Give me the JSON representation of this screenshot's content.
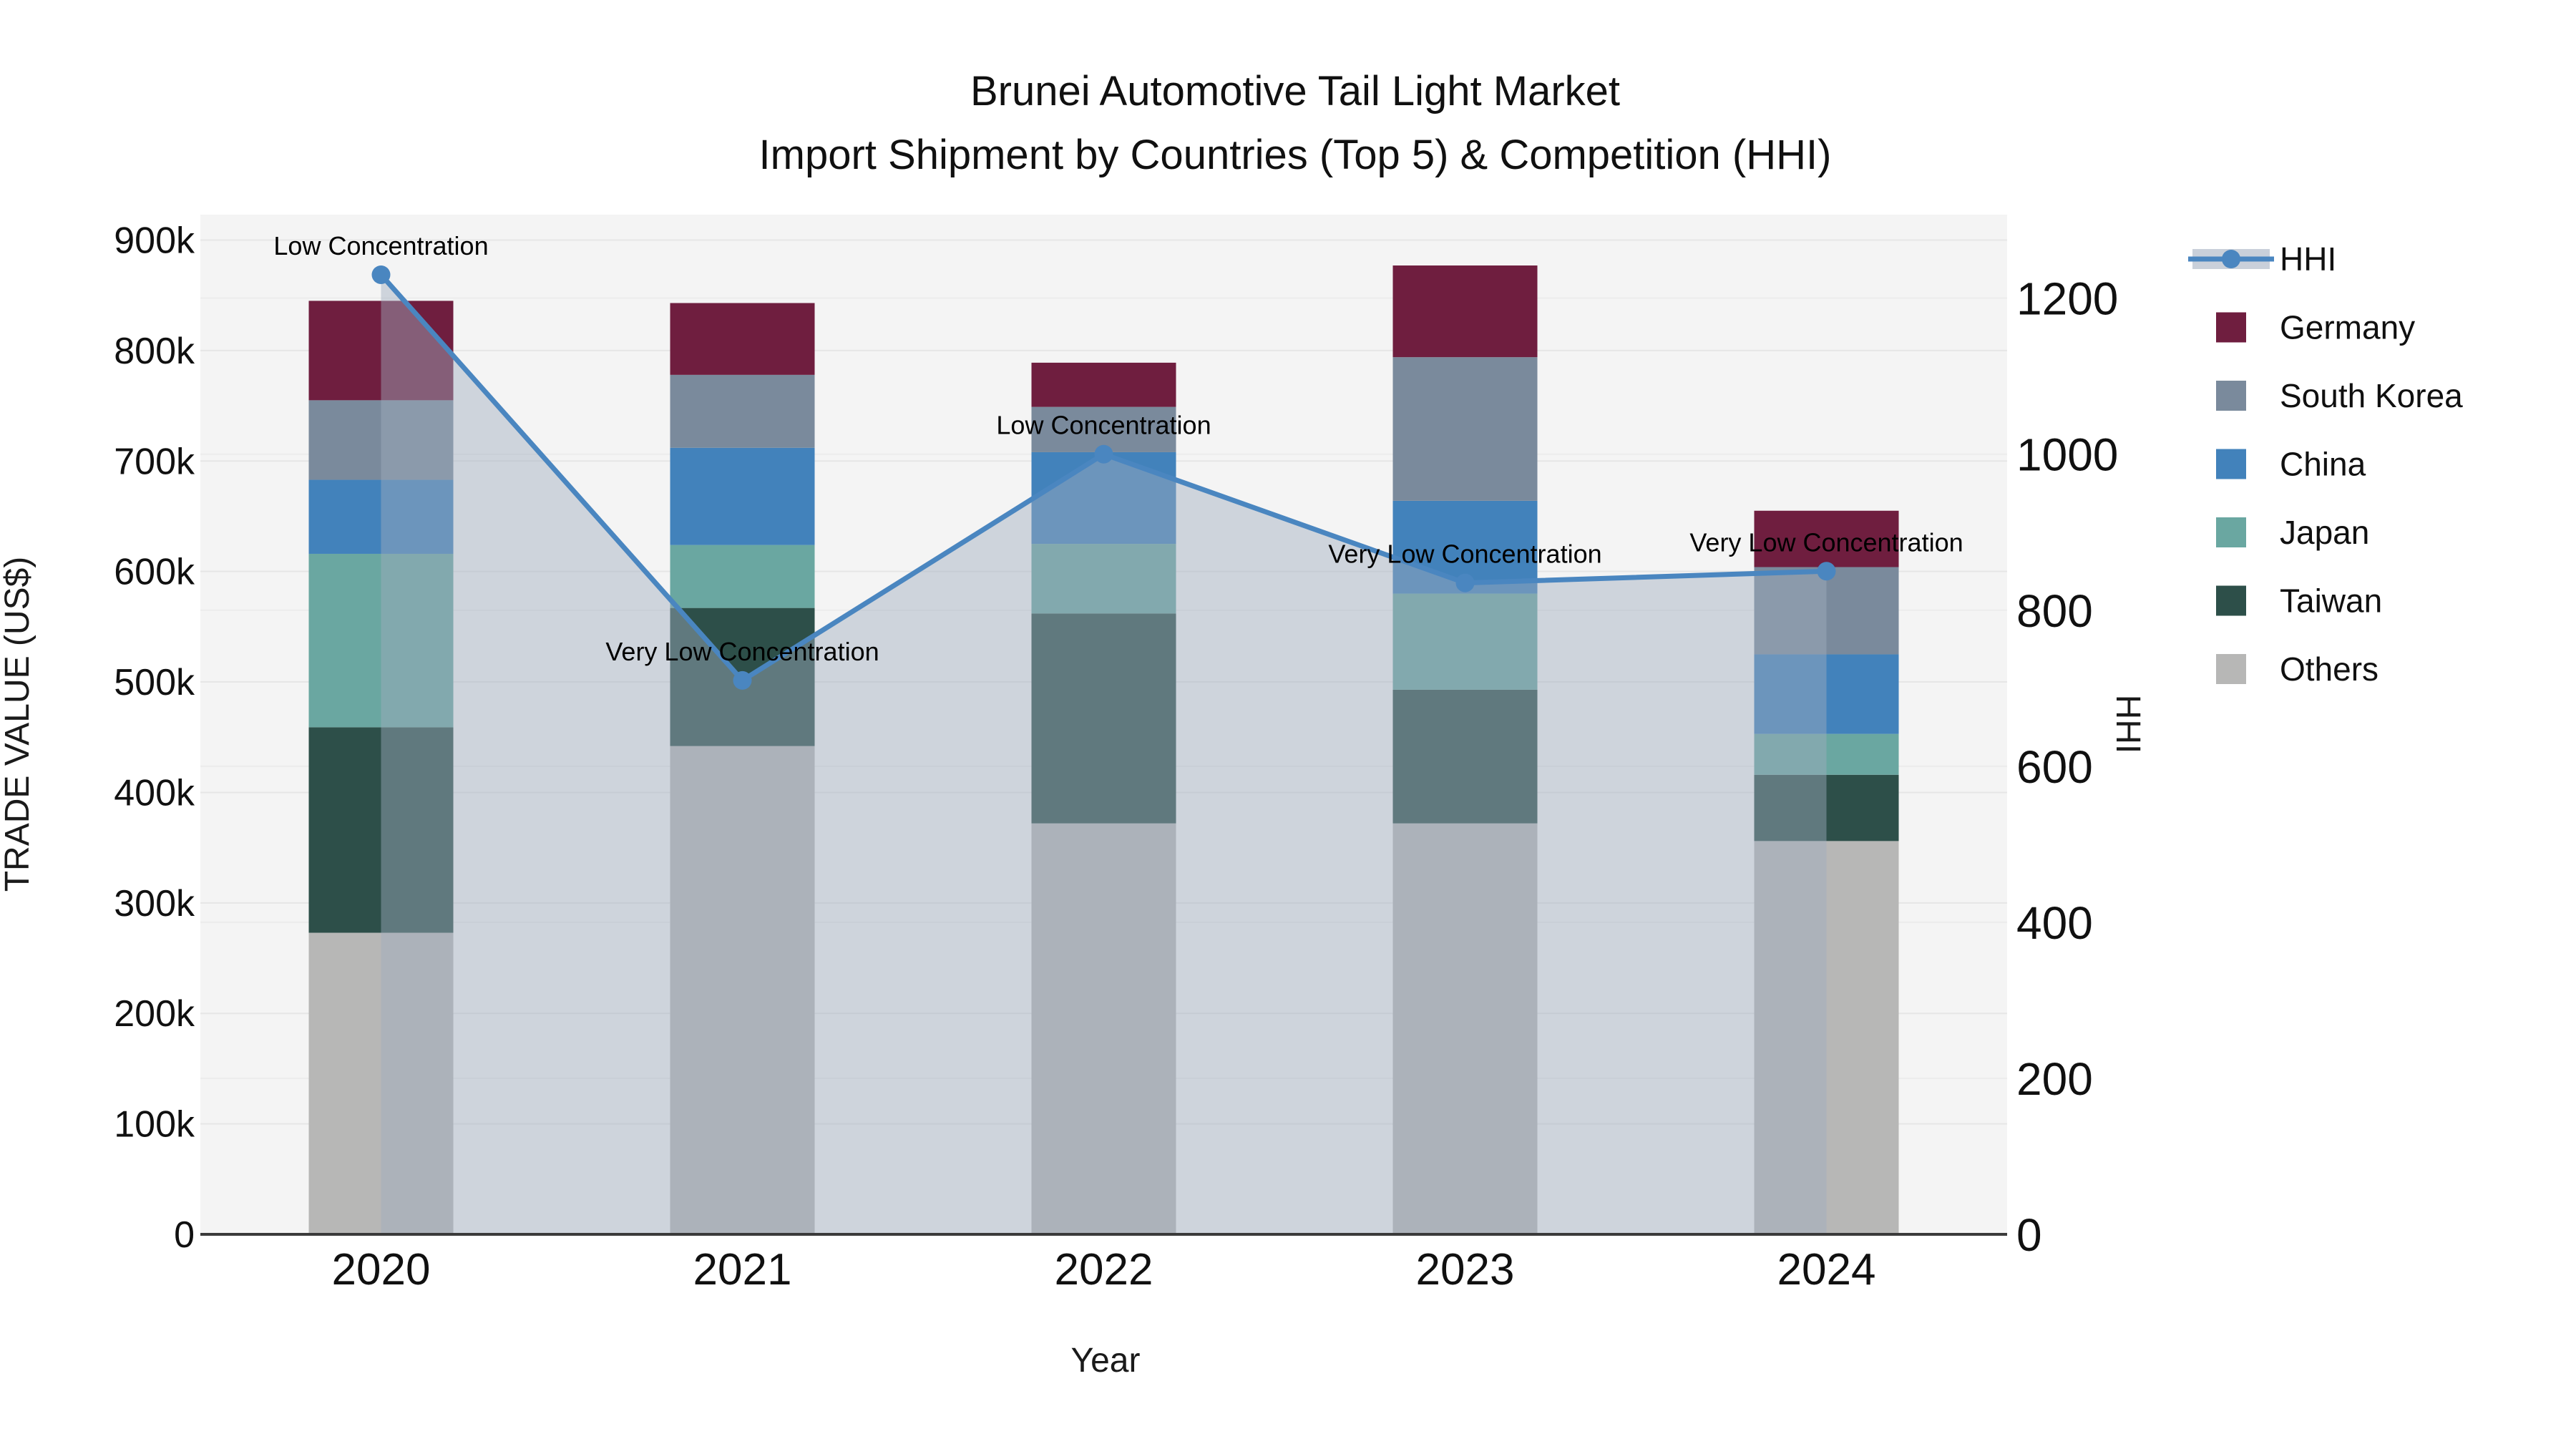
{
  "title": {
    "line1": "Brunei Automotive Tail Light Market",
    "line2": "Import Shipment by Countries (Top 5) & Competition (HHI)"
  },
  "chart_data": {
    "type": "bar+line",
    "title": "Brunei Automotive Tail Light Market — Import Shipment by Countries (Top 5) & Competition (HHI)",
    "categories": [
      "2020",
      "2021",
      "2022",
      "2023",
      "2024"
    ],
    "x_axis": {
      "label": "Year"
    },
    "y_left": {
      "label": "TRADE VALUE (US$)",
      "unit": "thousand US$",
      "range": [
        0,
        923
      ],
      "ticks": [
        {
          "label": "0",
          "value": 0
        },
        {
          "label": "100k",
          "value": 100
        },
        {
          "label": "200k",
          "value": 200
        },
        {
          "label": "300k",
          "value": 300
        },
        {
          "label": "400k",
          "value": 400
        },
        {
          "label": "500k",
          "value": 500
        },
        {
          "label": "600k",
          "value": 600
        },
        {
          "label": "700k",
          "value": 700
        },
        {
          "label": "800k",
          "value": 800
        },
        {
          "label": "900k",
          "value": 900
        }
      ]
    },
    "y_right": {
      "label": "HHI",
      "range": [
        0,
        1307
      ],
      "ticks": [
        {
          "label": "0",
          "value": 0
        },
        {
          "label": "200",
          "value": 200
        },
        {
          "label": "400",
          "value": 400
        },
        {
          "label": "600",
          "value": 600
        },
        {
          "label": "800",
          "value": 800
        },
        {
          "label": "1000",
          "value": 1000
        },
        {
          "label": "1200",
          "value": 1200
        }
      ]
    },
    "stack_order_bottom_to_top": [
      "Others",
      "Taiwan",
      "Japan",
      "China",
      "South Korea",
      "Germany"
    ],
    "series": [
      {
        "name": "Others",
        "color": "#b7b7b6",
        "values": [
          273,
          442,
          372,
          372,
          356
        ]
      },
      {
        "name": "Taiwan",
        "color": "#2d4f49",
        "values": [
          186,
          125,
          190,
          121,
          60
        ]
      },
      {
        "name": "Japan",
        "color": "#6aa7a1",
        "values": [
          157,
          57,
          63,
          87,
          37
        ]
      },
      {
        "name": "China",
        "color": "#4282bb",
        "values": [
          67,
          88,
          83,
          84,
          72
        ]
      },
      {
        "name": "South Korea",
        "color": "#7a8a9c",
        "values": [
          72,
          66,
          41,
          130,
          79
        ]
      },
      {
        "name": "Germany",
        "color": "#6f1e3f",
        "values": [
          90,
          65,
          40,
          83,
          51
        ]
      }
    ],
    "hhi": {
      "name": "HHI",
      "color": "#4a86c0",
      "area_fill": "rgba(160,172,190,0.45)",
      "marker_radius": 13,
      "values": [
        1230,
        710,
        1000,
        835,
        850
      ],
      "annotations": [
        "Low Concentration",
        "Very Low Concentration",
        "Low Concentration",
        "Very Low Concentration",
        "Very Low Concentration"
      ]
    },
    "legend": {
      "items": [
        {
          "label": "HHI",
          "type": "line",
          "color": "#4a86c0",
          "band": "#c9d0da"
        },
        {
          "label": "Germany",
          "type": "square",
          "color": "#6f1e3f"
        },
        {
          "label": "South Korea",
          "type": "square",
          "color": "#7a8a9c"
        },
        {
          "label": "China",
          "type": "square",
          "color": "#4282bb"
        },
        {
          "label": "Japan",
          "type": "square",
          "color": "#6aa7a1"
        },
        {
          "label": "Taiwan",
          "type": "square",
          "color": "#2d4f49"
        },
        {
          "label": "Others",
          "type": "square",
          "color": "#b7b7b6"
        }
      ]
    },
    "style": {
      "plot_bg": "#f4f4f4",
      "grid_left": "#e6e6e6",
      "grid_right": "#ececec",
      "baseline": "#3a3a3a"
    }
  }
}
